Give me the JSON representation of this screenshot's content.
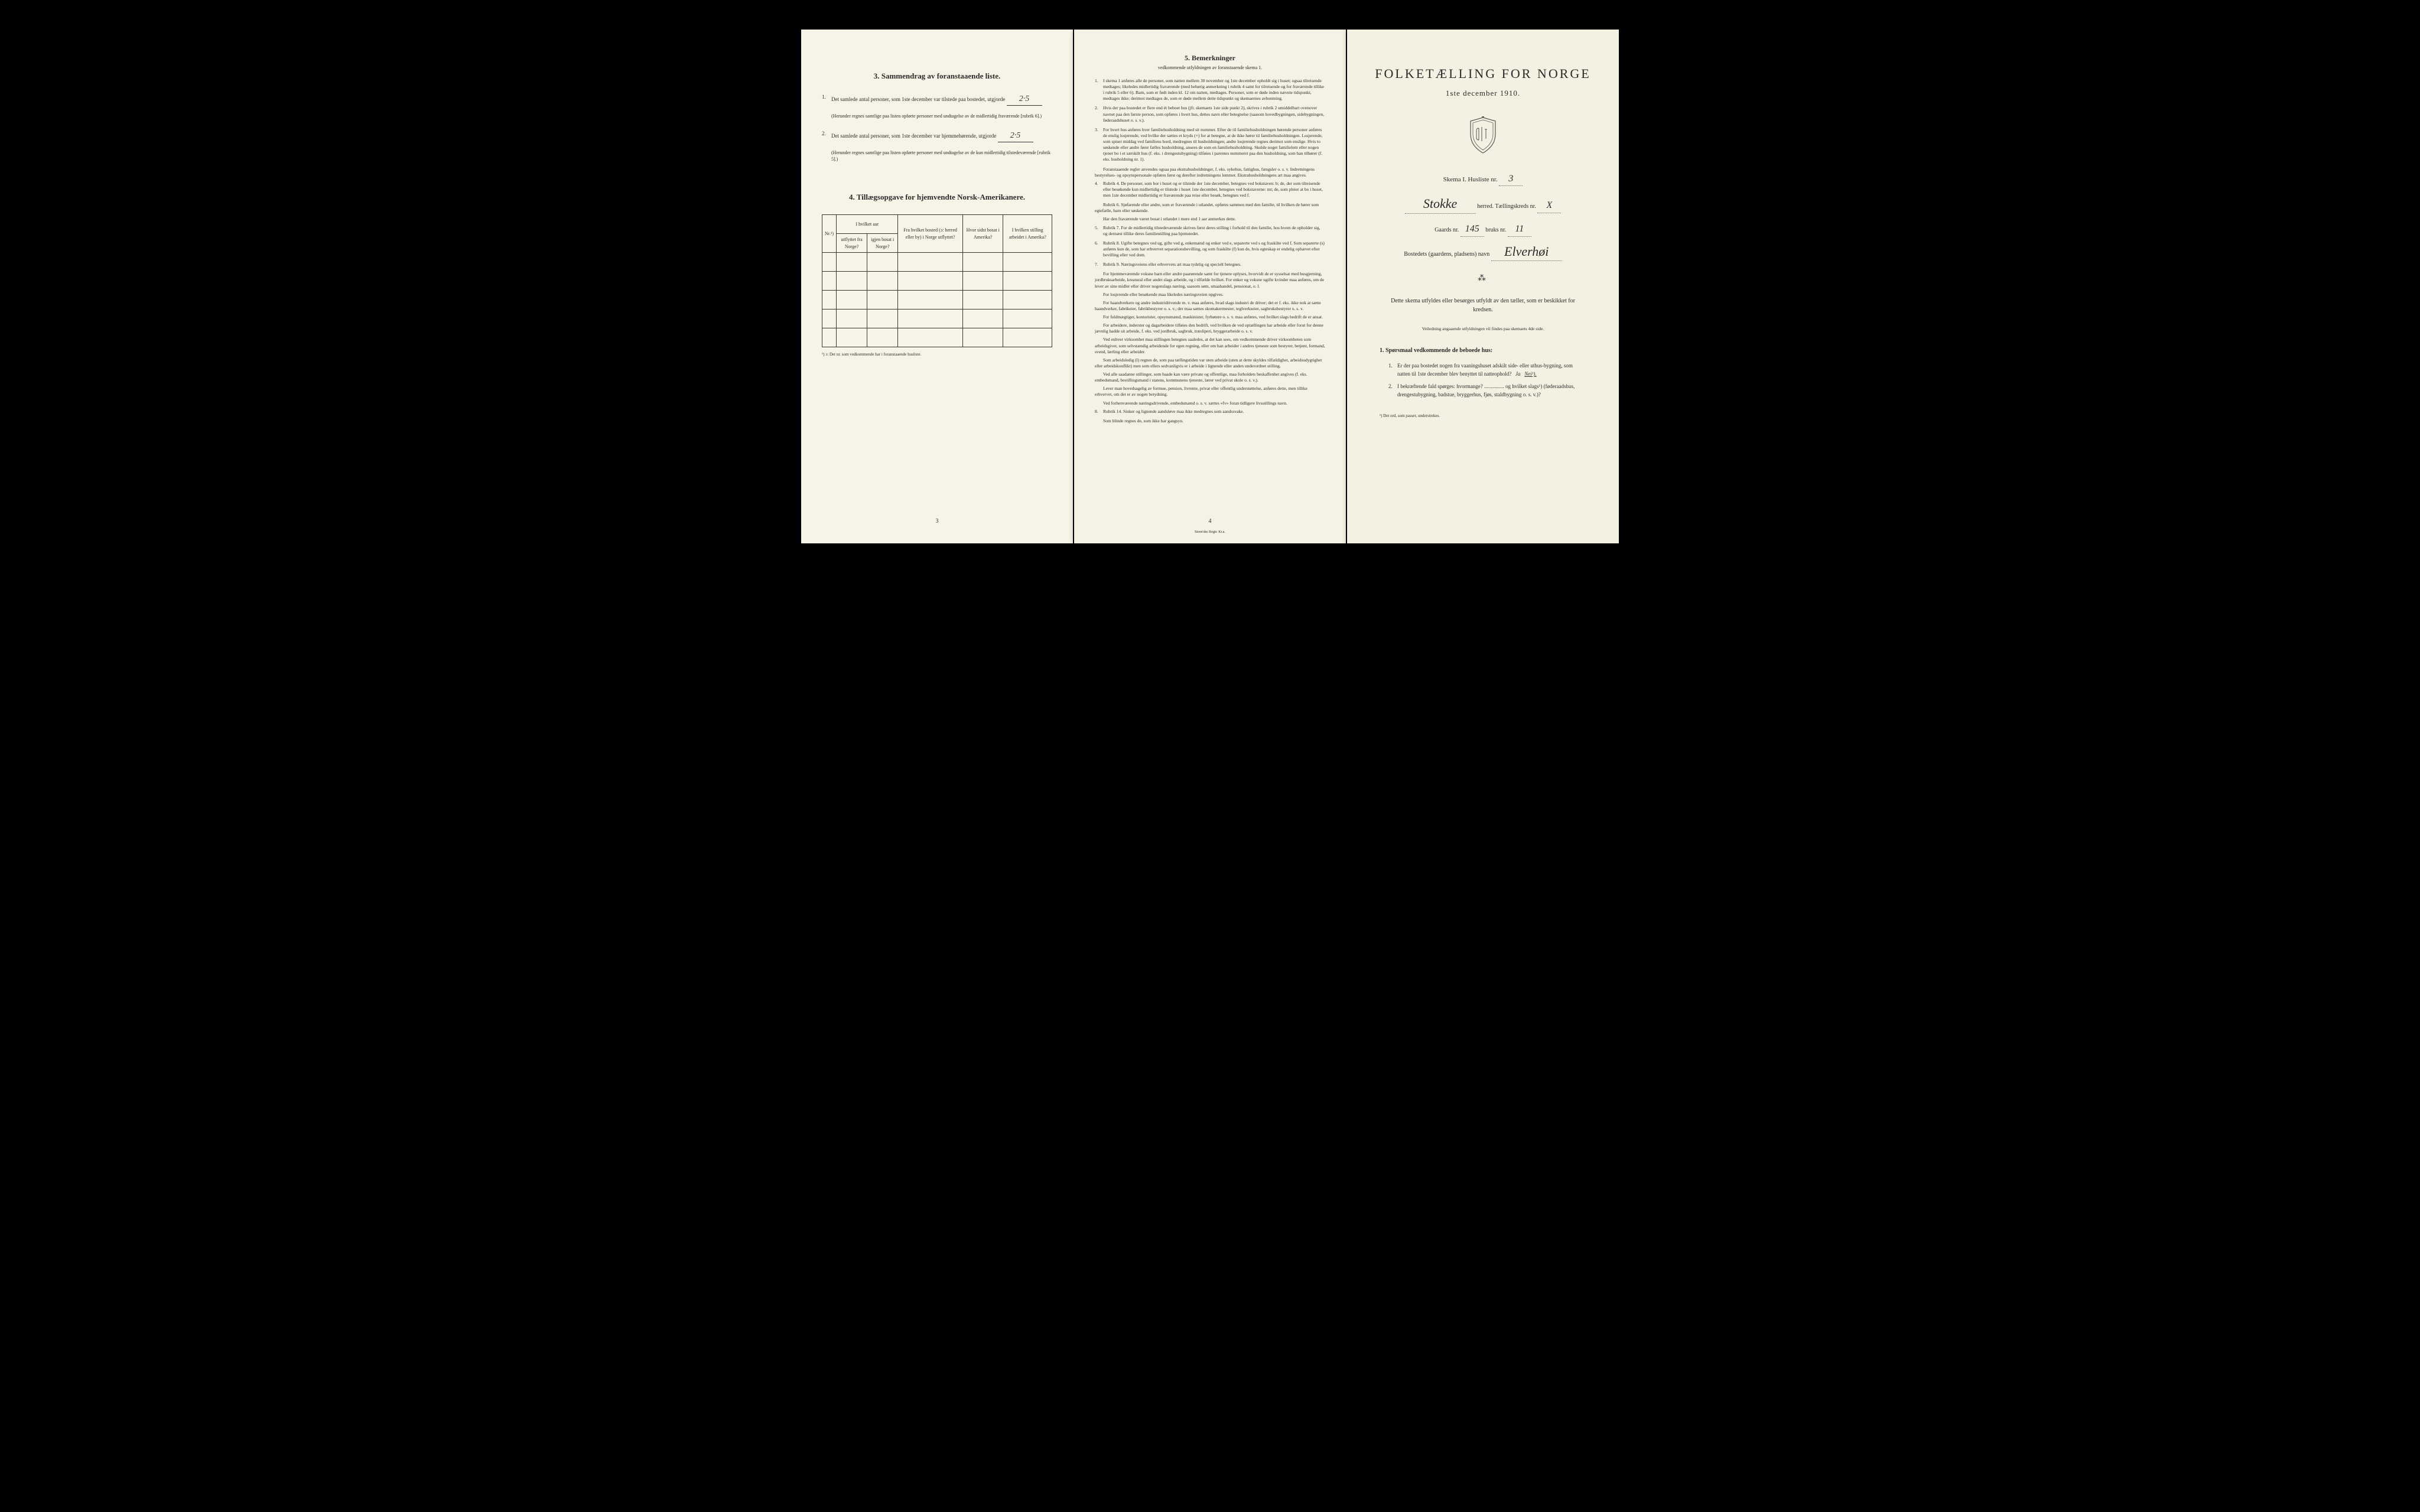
{
  "colors": {
    "page_bg": "#f5f1e4",
    "text": "#2a2a2a",
    "border": "#333333",
    "black_bg": "#000000"
  },
  "page3": {
    "section3_title": "3. Sammendrag av foranstaaende liste.",
    "item1_text": "Det samlede antal personer, som 1ste december var tilstede paa bostedet, utgjorde",
    "item1_value": "2·5",
    "herunder1": "(Herunder regnes samtlige paa listen opførte personer med undtagelse av de midlertidig fraværende [rubrik 6].)",
    "item2_text": "Det samlede antal personer, som 1ste december var hjemmehørende, utgjorde",
    "item2_value": "2·5",
    "herunder2": "(Herunder regnes samtlige paa listen opførte personer med undtagelse av de kun midlertidig tilstedeværende [rubrik 5].)",
    "section4_title": "4. Tillægsopgave for hjemvendte Norsk-Amerikanere.",
    "table_headers": {
      "nr": "Nr.¹)",
      "col1_top": "I hvilket aar",
      "col1a": "utflyttet fra Norge?",
      "col1b": "igjen bosat i Norge?",
      "col2": "Fra hvilket bosted (ɔ: herred eller by) i Norge utflyttet?",
      "col3": "Hvor sidst bosat i Amerika?",
      "col4": "I hvilken stilling arbeidet i Amerika?"
    },
    "table_note": "¹) ɔ: Det nr. som vedkommende har i foranstaaende husliste.",
    "page_num": "3"
  },
  "page4": {
    "title": "5. Bemerkninger",
    "subtitle": "vedkommende utfyldningen av foranstaaende skema 1.",
    "items": [
      {
        "num": "1.",
        "text": "I skema 1 anføres alle de personer, som natten mellem 30 november og 1ste december opholdt sig i huset; ogsaa tilreisende medtages; likeledes midlertidig fraværende (med behørig anmerkning i rubrik 4 samt for tilreisende og for fraværende tillike i rubrik 5 eller 6). Barn, som er født inden kl. 12 om natten, medtages. Personer, som er døde inden nævnte tidspunkt, medtages ikke; derimot medtages de, som er døde mellem dette tidspunkt og skemaernes avhentning."
      },
      {
        "num": "2.",
        "text": "Hvis der paa bostedet er flere end ét beboet hus (jfr. skemaets 1ste side punkt 2), skrives i rubrik 2 umiddelbart ovenover navnet paa den første person, som opføres i hvert hus, dettes navn eller betegnelse (saasom hovedbygningen, sidebygningen, føderaadshuset o. s. v.)."
      },
      {
        "num": "3.",
        "text": "For hvert hus anføres hver familiehusholdning med sit nummer. Efter de til familiehusholdningen hørende personer anføres de enslig losjerende, ved hvilke der sættes et kryds (×) for at betegne, at de ikke hører til familiehusholdningen. Losjerende, som spiser middag ved familiens bord, medregnes til husholdningen; andre losjerende regnes derimot som enslige. Hvis to søskende eller andre fører fælles husholdning, ansees de som en familiehusholdning. Skulde noget familielem eller nogen tjener bo i et særskilt hus (f. eks. i drengestubygning) tilføies i parentes nummeret paa den husholdning, som han tilhører (f. eks. husholdning nr. 1)."
      },
      {
        "num": "",
        "text": "Foranstaaende regler anvendes ogsaa paa ekstrahusholdninger, f. eks. sykehus, fattighus, fængsler o. s. v. Indretningens bestyrelses- og opsynspersonale opføres først og derefter indretningens lemmer. Ekstrahusholdningens art maa angives."
      },
      {
        "num": "4.",
        "text": "Rubrik 4. De personer, som bor i huset og er tilstede der 1ste december, betegnes ved bokstaven: b; de, der som tilreisende eller besøkende kun midlertidig er tilstede i huset 1ste december, betegnes ved bokstaverne: mt; de, som pleier at bo i huset, men 1ste december midlertidig er fraværende paa reise eller besøk, betegnes ved f."
      },
      {
        "num": "",
        "text": "Rubrik 6. Sjøfarende eller andre, som er fraværende i utlandet, opføres sammen med den familie, til hvilken de hører som egtefælle, barn eller søskende."
      },
      {
        "num": "",
        "text": "Har den fraværende været bosat i utlandet i mere end 1 aar anmerkes dette."
      },
      {
        "num": "5.",
        "text": "Rubrik 7. For de midlertidig tilstedeværende skrives først deres stilling i forhold til den familie, hos hvem de opholder sig, og dernæst tillike deres familiestilling paa hjemstedet."
      },
      {
        "num": "6.",
        "text": "Rubrik 8. Ugifte betegnes ved ug, gifte ved g, enkemænd og enker ved e, separerte ved s og fraskilte ved f. Som separerte (s) anføres kun de, som har erhvervet separationsbevilling, og som fraskilte (f) kun de, hvis egteskap er endelig ophævet efter bevilling eller ved dom."
      },
      {
        "num": "7.",
        "text": "Rubrik 9. Næringsveiens eller erhvervets art maa tydelig og specielt betegnes."
      },
      {
        "num": "",
        "text": "For hjemmeværende voksne barn eller andre paarørende samt for tjenere oplyses, hvorvidt de er sysselsat med husgjerning, jordbruksarbeide, kreatural eller andet slags arbeide, og i tilfælde hvilket. For enker og voksne ugifte kvinder maa anføres, om de lever av sine midler eller driver nogenslags næring, saasom søm, smaahandel, pensionat, o. l."
      },
      {
        "num": "",
        "text": "For losjerende eller besøkende maa likeledes næringsveien opgives."
      },
      {
        "num": "",
        "text": "For haandverkere og andre industridrivende m. v. maa anføres, hvad slags industri de driver; det er f. eks. ikke nok at sætte haandverker, fabrikeier, fabrikbestyrer o. s. v.; der maa sættes skomakermester, teglverkseier, sagbruksbestyrer o. s. v."
      },
      {
        "num": "",
        "text": "For fuldmægtiger, kontorister, opsynsmænd, maskinister, fyrbøtere o. s. v. maa anføres, ved hvilket slags bedrift de er ansat."
      },
      {
        "num": "",
        "text": "For arbeidere, inderster og dagarbeidere tilføies den bedrift, ved hvilken de ved optællingen har arbeide eller forut for denne jævnlig hadde sit arbeide, f. eks. ved jordbruk, sagbruk, træsliperi, bryggerarbeide o. s. v."
      },
      {
        "num": "",
        "text": "Ved enhver virksomhet maa stillingen betegnes saaledes, at det kan sees, om vedkommende driver virksomheten som arbeidsgiver, som selvstændig arbeidende for egen regning, eller om han arbeider i andres tjeneste som bestyrer, betjent, formand, svend, lærling eller arbeider."
      },
      {
        "num": "",
        "text": "Som arbeidsledig (l) regnes de, som paa tællingstiden var uten arbeide (uten at dette skyldes tilfældighet, arbeidsudygtighet eller arbeidskonflikt) men som ellers sedvanligvis er i arbeide i lignende eller anden underordnet stilling."
      },
      {
        "num": "",
        "text": "Ved alle saadanne stillinger, som baade kan være private og offentlige, maa forholdets beskaffenhet angives (f. eks. embedsmand, bestillingsmand i statens, kommunens tjeneste, lærer ved privat skole o. s. v.)."
      },
      {
        "num": "",
        "text": "Lever man hovedsagelig av formue, pension, livrente, privat eller offentlig understøttelse, anføres dette, men tillike erhvervet, om det er av nogen betydning."
      },
      {
        "num": "",
        "text": "Ved forhenværende næringsdrivende, embedsmænd o. s. v. sættes «fv» foran tidligere livsstillings navn."
      },
      {
        "num": "8.",
        "text": "Rubrik 14. Sinker og lignende aandsløve maa ikke medregnes som aandssvake."
      },
      {
        "num": "",
        "text": "Som blinde regnes de, som ikke har gangsyn."
      }
    ],
    "page_num": "4",
    "printer": "Steen'ske Bogtr.   Kr.a."
  },
  "page1": {
    "main_title": "FOLKETÆLLING FOR NORGE",
    "date": "1ste december 1910.",
    "skema": "Skema I.  Husliste nr.",
    "husliste_nr": "3",
    "herred_name": "Stokke",
    "herred_label": "herred.  Tællingskreds nr.",
    "tellingskreds_nr": "X",
    "gaards_label": "Gaards nr.",
    "gaards_nr": "145",
    "bruks_label": "bruks nr.",
    "bruks_nr": "11",
    "bosted_label": "Bostedets (gaardens, pladsens) navn",
    "bosted_name": "Elverhøi",
    "instruction": "Dette skema utfyldes eller besørges utfyldt av den tæller, som er beskikket for kredsen.",
    "veiledning": "Veiledning angaaende utfyldningen vil findes paa skemaets 4de side.",
    "sporsmaal_header": "1. Spørsmaal vedkommende de beboede hus:",
    "sp1": "Er der paa bostedet nogen fra vaaningshuset adskilt side- eller uthus-bygning, som natten til 1ste december blev benyttet til natteophold?",
    "ja": "Ja",
    "nei": "Nei¹).",
    "sp2": "I bekræftende fald spørges: hvormange? ............... og hvilket slags¹) (føderaadshus, drengestubygning, badstue, bryggerhus, fjøs, staldbygning o. s. v.)?",
    "footnote": "¹) Det ord, som passer, understrekes."
  }
}
